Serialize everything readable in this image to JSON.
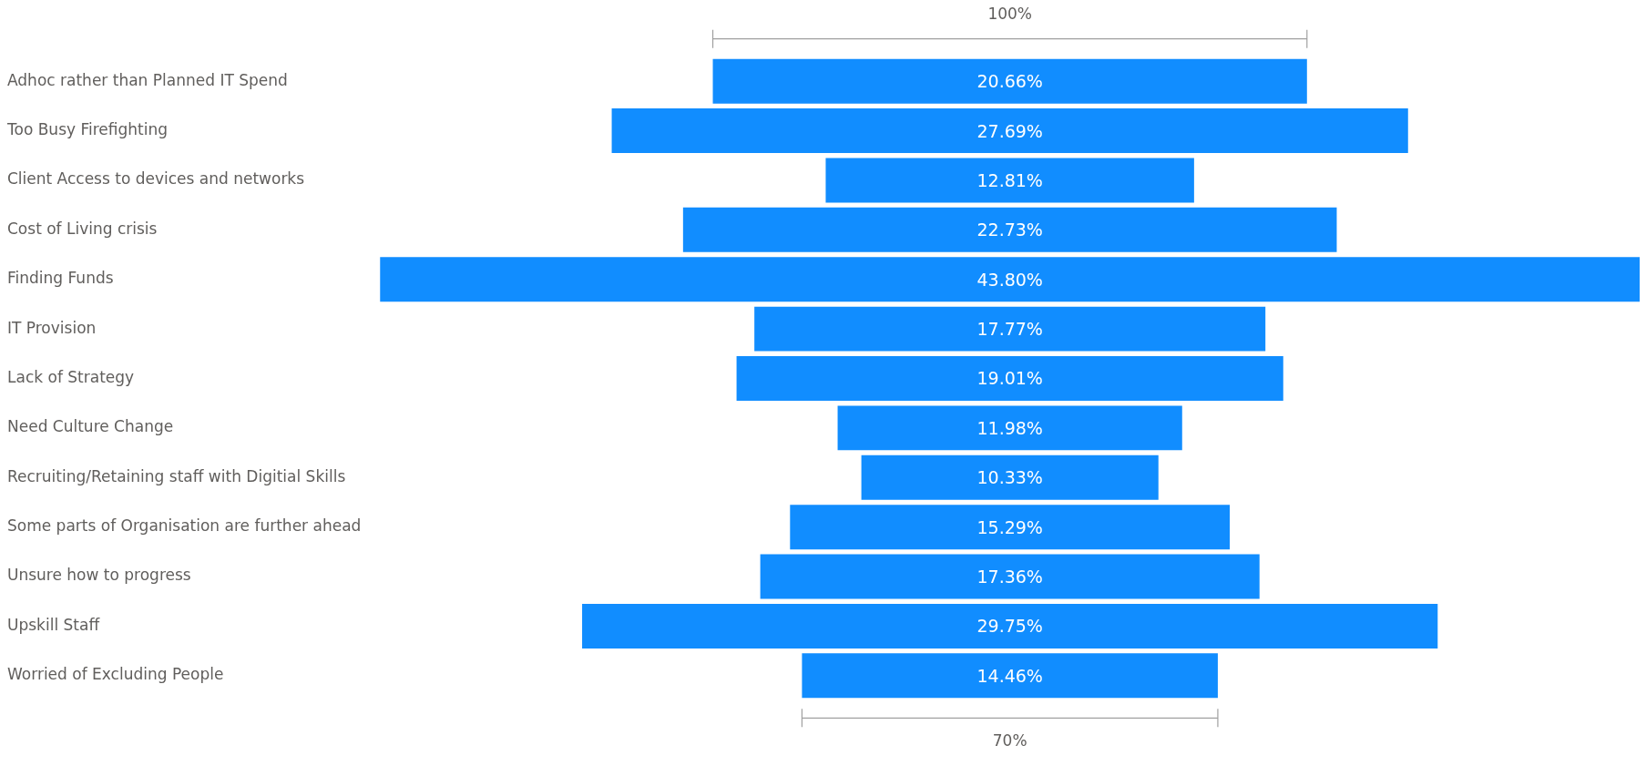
{
  "chart_data": {
    "type": "other",
    "categories": [
      "Adhoc rather than Planned IT Spend",
      "Too Busy Firefighting",
      "Client Access to devices and networks",
      "Cost of Living crisis",
      "Finding Funds",
      "IT Provision",
      "Lack of Strategy",
      "Need Culture Change",
      "Recruiting/Retaining staff with Digitial Skills",
      "Some parts of Organisation are further ahead",
      "Unsure how to progress",
      "Upskill Staff",
      "Worried of Excluding People"
    ],
    "values": [
      20.66,
      27.69,
      12.81,
      22.73,
      43.8,
      17.77,
      19.01,
      11.98,
      10.33,
      15.29,
      17.36,
      29.75,
      14.46
    ],
    "value_labels": [
      "20.66%",
      "27.69%",
      "12.81%",
      "22.73%",
      "43.80%",
      "17.77%",
      "19.01%",
      "11.98%",
      "10.33%",
      "15.29%",
      "17.36%",
      "29.75%",
      "14.46%"
    ],
    "color": "#118dff",
    "annotations": [
      "100%",
      "70%"
    ]
  }
}
